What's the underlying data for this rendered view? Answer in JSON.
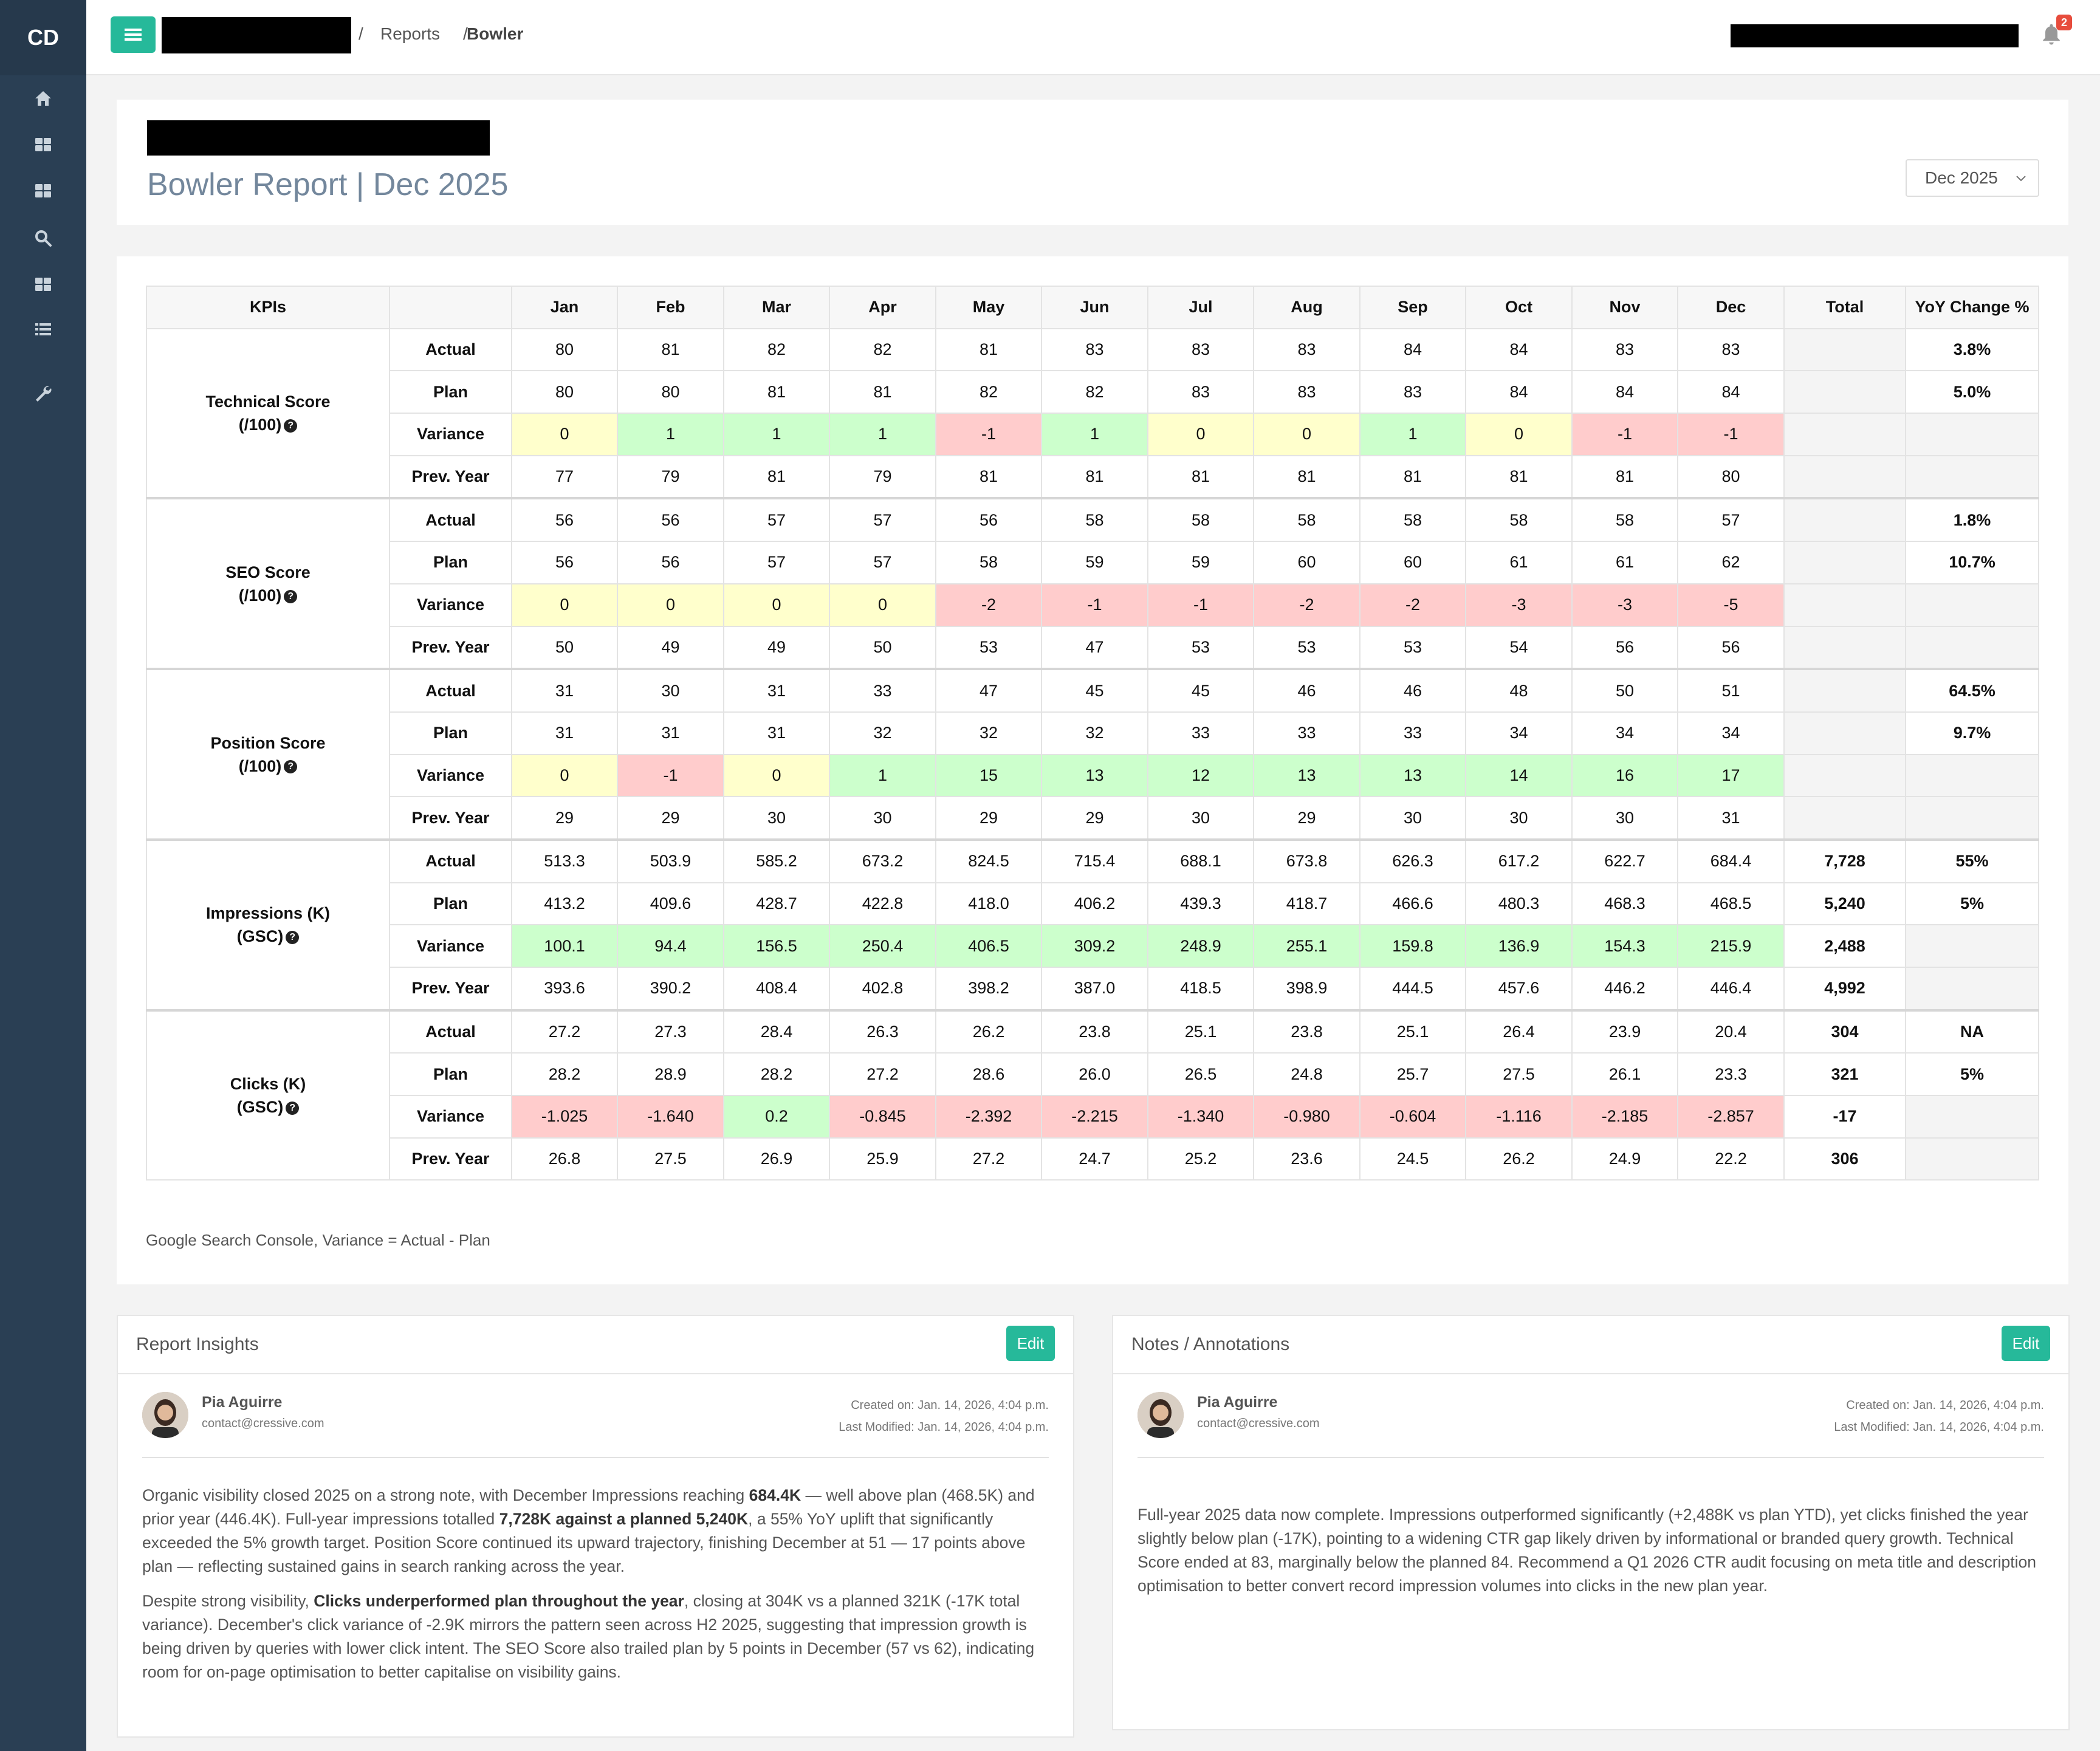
{
  "app": {
    "logo": "CD"
  },
  "breadcrumb": {
    "sep1": "/",
    "reports": "Reports",
    "sep2": "/",
    "current": "Bowler"
  },
  "notifications": {
    "count": "2"
  },
  "header": {
    "title": "Bowler Report | Dec 2025",
    "month_select": "Dec 2025"
  },
  "table": {
    "headers": [
      "KPIs",
      "",
      "Jan",
      "Feb",
      "Mar",
      "Apr",
      "May",
      "Jun",
      "Jul",
      "Aug",
      "Sep",
      "Oct",
      "Nov",
      "Dec",
      "Total",
      "YoY Change %"
    ],
    "row_labels": [
      "Actual",
      "Plan",
      "Variance",
      "Prev. Year"
    ],
    "groups": [
      {
        "kpi_line1": "Technical Score",
        "kpi_line2": "(/100)",
        "rows": [
          {
            "values": [
              "80",
              "81",
              "82",
              "82",
              "81",
              "83",
              "83",
              "83",
              "84",
              "84",
              "83",
              "83"
            ],
            "total": "",
            "yoy": "3.8%"
          },
          {
            "values": [
              "80",
              "80",
              "81",
              "81",
              "82",
              "82",
              "83",
              "83",
              "83",
              "84",
              "84",
              "84"
            ],
            "total": "",
            "yoy": "5.0%"
          },
          {
            "values": [
              "0",
              "1",
              "1",
              "1",
              "-1",
              "1",
              "0",
              "0",
              "1",
              "0",
              "-1",
              "-1"
            ],
            "status": [
              "yel",
              "grn",
              "grn",
              "grn",
              "red",
              "grn",
              "yel",
              "yel",
              "grn",
              "yel",
              "red",
              "red"
            ],
            "total": "",
            "yoy": ""
          },
          {
            "values": [
              "77",
              "79",
              "81",
              "79",
              "81",
              "81",
              "81",
              "81",
              "81",
              "81",
              "81",
              "80"
            ],
            "total": "",
            "yoy": ""
          }
        ]
      },
      {
        "kpi_line1": "SEO Score",
        "kpi_line2": "(/100)",
        "rows": [
          {
            "values": [
              "56",
              "56",
              "57",
              "57",
              "56",
              "58",
              "58",
              "58",
              "58",
              "58",
              "58",
              "57"
            ],
            "total": "",
            "yoy": "1.8%"
          },
          {
            "values": [
              "56",
              "56",
              "57",
              "57",
              "58",
              "59",
              "59",
              "60",
              "60",
              "61",
              "61",
              "62"
            ],
            "total": "",
            "yoy": "10.7%"
          },
          {
            "values": [
              "0",
              "0",
              "0",
              "0",
              "-2",
              "-1",
              "-1",
              "-2",
              "-2",
              "-3",
              "-3",
              "-5"
            ],
            "status": [
              "yel",
              "yel",
              "yel",
              "yel",
              "red",
              "red",
              "red",
              "red",
              "red",
              "red",
              "red",
              "red"
            ],
            "total": "",
            "yoy": ""
          },
          {
            "values": [
              "50",
              "49",
              "49",
              "50",
              "53",
              "47",
              "53",
              "53",
              "53",
              "54",
              "56",
              "56"
            ],
            "total": "",
            "yoy": ""
          }
        ]
      },
      {
        "kpi_line1": "Position Score",
        "kpi_line2": "(/100)",
        "rows": [
          {
            "values": [
              "31",
              "30",
              "31",
              "33",
              "47",
              "45",
              "45",
              "46",
              "46",
              "48",
              "50",
              "51"
            ],
            "total": "",
            "yoy": "64.5%"
          },
          {
            "values": [
              "31",
              "31",
              "31",
              "32",
              "32",
              "32",
              "33",
              "33",
              "33",
              "34",
              "34",
              "34"
            ],
            "total": "",
            "yoy": "9.7%"
          },
          {
            "values": [
              "0",
              "-1",
              "0",
              "1",
              "15",
              "13",
              "12",
              "13",
              "13",
              "14",
              "16",
              "17"
            ],
            "status": [
              "yel",
              "red",
              "yel",
              "grn",
              "grn",
              "grn",
              "grn",
              "grn",
              "grn",
              "grn",
              "grn",
              "grn"
            ],
            "total": "",
            "yoy": ""
          },
          {
            "values": [
              "29",
              "29",
              "30",
              "30",
              "29",
              "29",
              "30",
              "29",
              "30",
              "30",
              "30",
              "31"
            ],
            "total": "",
            "yoy": ""
          }
        ]
      },
      {
        "kpi_line1": "Impressions (K)",
        "kpi_line2": "(GSC)",
        "rows": [
          {
            "values": [
              "513.3",
              "503.9",
              "585.2",
              "673.2",
              "824.5",
              "715.4",
              "688.1",
              "673.8",
              "626.3",
              "617.2",
              "622.7",
              "684.4"
            ],
            "total": "7,728",
            "yoy": "55%"
          },
          {
            "values": [
              "413.2",
              "409.6",
              "428.7",
              "422.8",
              "418.0",
              "406.2",
              "439.3",
              "418.7",
              "466.6",
              "480.3",
              "468.3",
              "468.5"
            ],
            "total": "5,240",
            "yoy": "5%"
          },
          {
            "values": [
              "100.1",
              "94.4",
              "156.5",
              "250.4",
              "406.5",
              "309.2",
              "248.9",
              "255.1",
              "159.8",
              "136.9",
              "154.3",
              "215.9"
            ],
            "status": [
              "grn",
              "grn",
              "grn",
              "grn",
              "grn",
              "grn",
              "grn",
              "grn",
              "grn",
              "grn",
              "grn",
              "grn"
            ],
            "total": "2,488",
            "yoy": ""
          },
          {
            "values": [
              "393.6",
              "390.2",
              "408.4",
              "402.8",
              "398.2",
              "387.0",
              "418.5",
              "398.9",
              "444.5",
              "457.6",
              "446.2",
              "446.4"
            ],
            "total": "4,992",
            "yoy": ""
          }
        ]
      },
      {
        "kpi_line1": "Clicks (K)",
        "kpi_line2": "(GSC)",
        "rows": [
          {
            "values": [
              "27.2",
              "27.3",
              "28.4",
              "26.3",
              "26.2",
              "23.8",
              "25.1",
              "23.8",
              "25.1",
              "26.4",
              "23.9",
              "20.4"
            ],
            "total": "304",
            "yoy": "NA"
          },
          {
            "values": [
              "28.2",
              "28.9",
              "28.2",
              "27.2",
              "28.6",
              "26.0",
              "26.5",
              "24.8",
              "25.7",
              "27.5",
              "26.1",
              "23.3"
            ],
            "total": "321",
            "yoy": "5%"
          },
          {
            "values": [
              "-1.025",
              "-1.640",
              "0.2",
              "-0.845",
              "-2.392",
              "-2.215",
              "-1.340",
              "-0.980",
              "-0.604",
              "-1.116",
              "-2.185",
              "-2.857"
            ],
            "status": [
              "red",
              "red",
              "grn",
              "red",
              "red",
              "red",
              "red",
              "red",
              "red",
              "red",
              "red",
              "red"
            ],
            "total": "-17",
            "yoy": ""
          },
          {
            "values": [
              "26.8",
              "27.5",
              "26.9",
              "25.9",
              "27.2",
              "24.7",
              "25.2",
              "23.6",
              "24.5",
              "26.2",
              "24.9",
              "22.2"
            ],
            "total": "306",
            "yoy": ""
          }
        ]
      }
    ],
    "footnote": "Google Search Console, Variance = Actual - Plan"
  },
  "insights": {
    "title": "Report Insights",
    "edit": "Edit",
    "author": "Pia Aguirre",
    "email": "contact@cressive.com",
    "created": "Created on: Jan. 14, 2026, 4:04 p.m.",
    "modified": "Last Modified: Jan. 14, 2026, 4:04 p.m.",
    "p1_a": "Organic visibility closed 2025 on a strong note, with December Impressions reaching ",
    "p1_b": "684.4K",
    "p1_c": " — well above plan (468.5K) and prior year (446.4K). Full-year impressions totalled ",
    "p1_d": "7,728K against a planned 5,240K",
    "p1_e": ", a 55% YoY uplift that significantly exceeded the 5% growth target. Position Score continued its upward trajectory, finishing December at 51 — 17 points above plan — reflecting sustained gains in search ranking across the year.",
    "p2_a": "Despite strong visibility, ",
    "p2_b": "Clicks underperformed plan throughout the year",
    "p2_c": ", closing at 304K vs a planned 321K (-17K total variance). December's click variance of -2.9K mirrors the pattern seen across H2 2025, suggesting that impression growth is being driven by queries with lower click intent. The SEO Score also trailed plan by 5 points in December (57 vs 62), indicating room for on-page optimisation to better capitalise on visibility gains."
  },
  "notes": {
    "title": "Notes / Annotations",
    "edit": "Edit",
    "author": "Pia Aguirre",
    "email": "contact@cressive.com",
    "created": "Created on: Jan. 14, 2026, 4:04 p.m.",
    "modified": "Last Modified: Jan. 14, 2026, 4:04 p.m.",
    "text": "Full-year 2025 data now complete. Impressions outperformed significantly (+2,488K vs plan YTD), yet clicks finished the year slightly below plan (-17K), pointing to a widening CTR gap likely driven by informational or branded query growth. Technical Score ended at 83, marginally below the planned 84. Recommend a Q1 2026 CTR audit focusing on meta title and description optimisation to better convert record impression volumes into clicks in the new plan year."
  },
  "colors": {
    "accent": "#26b99a",
    "sidebar": "#2a3f54",
    "variance_yellow": "#ffffcc",
    "variance_green": "#ccffcc",
    "variance_red": "#ffcccc",
    "badge": "#e74c3c"
  },
  "icons": {
    "sidebar": [
      "home-icon",
      "dashboard-icon",
      "grid-icon",
      "search-icon",
      "apps-icon",
      "list-icon",
      "wrench-icon"
    ],
    "topbar": [
      "hamburger-icon",
      "bell-icon"
    ]
  }
}
